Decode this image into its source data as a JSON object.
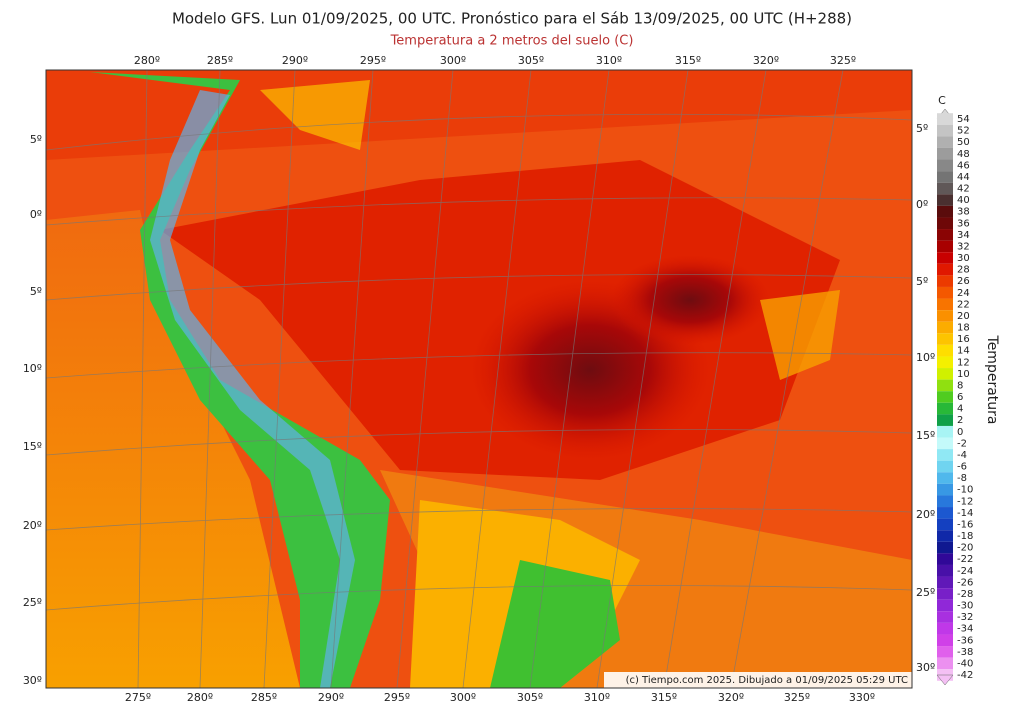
{
  "header": {
    "title": "Modelo GFS. Lun 01/09/2025, 00 UTC. Pronóstico para el Sáb 13/09/2025, 00 UTC (H+288)",
    "subtitle": "Temperatura a 2 metros del suelo (C)"
  },
  "map": {
    "top_labels": [
      "280º",
      "285º",
      "290º",
      "295º",
      "300º",
      "305º",
      "310º",
      "315º",
      "320º",
      "325º"
    ],
    "bottom_labels": [
      "275º",
      "280º",
      "285º",
      "290º",
      "295º",
      "300º",
      "305º",
      "310º",
      "315º",
      "320º",
      "325º",
      "330º"
    ],
    "left_labels": [
      "5º",
      "0º",
      "5º",
      "10º",
      "15º",
      "20º",
      "25º",
      "30º"
    ],
    "right_labels": [
      "5º",
      "0º",
      "5º",
      "10º",
      "15º",
      "20º",
      "25º",
      "30º"
    ],
    "credit": "(c) Tiempo.com 2025. Dibujado a 01/09/2025 05:29 UTC"
  },
  "colorbar": {
    "unit": "C",
    "title": "Temperatura",
    "levels": [
      54,
      52,
      50,
      48,
      46,
      44,
      42,
      40,
      38,
      36,
      34,
      32,
      30,
      28,
      26,
      24,
      22,
      20,
      18,
      16,
      14,
      12,
      10,
      8,
      6,
      4,
      2,
      0,
      -2,
      -4,
      -6,
      -8,
      -10,
      -12,
      -14,
      -16,
      -18,
      -20,
      -22,
      -24,
      -26,
      -28,
      -30,
      -32,
      -34,
      -36,
      -38,
      -40,
      -42
    ],
    "colors": [
      "#d8d8d8",
      "#c4c4c4",
      "#b0b0b0",
      "#9c9c9c",
      "#888888",
      "#747474",
      "#605858",
      "#4a3030",
      "#5a0c0c",
      "#6e0808",
      "#8a0404",
      "#a80000",
      "#c80000",
      "#e01800",
      "#ec3a00",
      "#f45800",
      "#f87400",
      "#fa9000",
      "#fcac00",
      "#fdc400",
      "#fede00",
      "#f4f000",
      "#d0f000",
      "#90e010",
      "#50cc20",
      "#28b838",
      "#10a048",
      "#a8f4f4",
      "#c4fafa",
      "#90e8f4",
      "#70d4f0",
      "#50b8ec",
      "#3898e4",
      "#2878dc",
      "#1c58d0",
      "#1440c0",
      "#1028a8",
      "#101890",
      "#300898",
      "#4810a8",
      "#6018b8",
      "#7820c8",
      "#9028d8",
      "#a830e0",
      "#c038e8",
      "#d040e8",
      "#e060ec",
      "#ec90f0",
      "#f4c0f4"
    ]
  }
}
